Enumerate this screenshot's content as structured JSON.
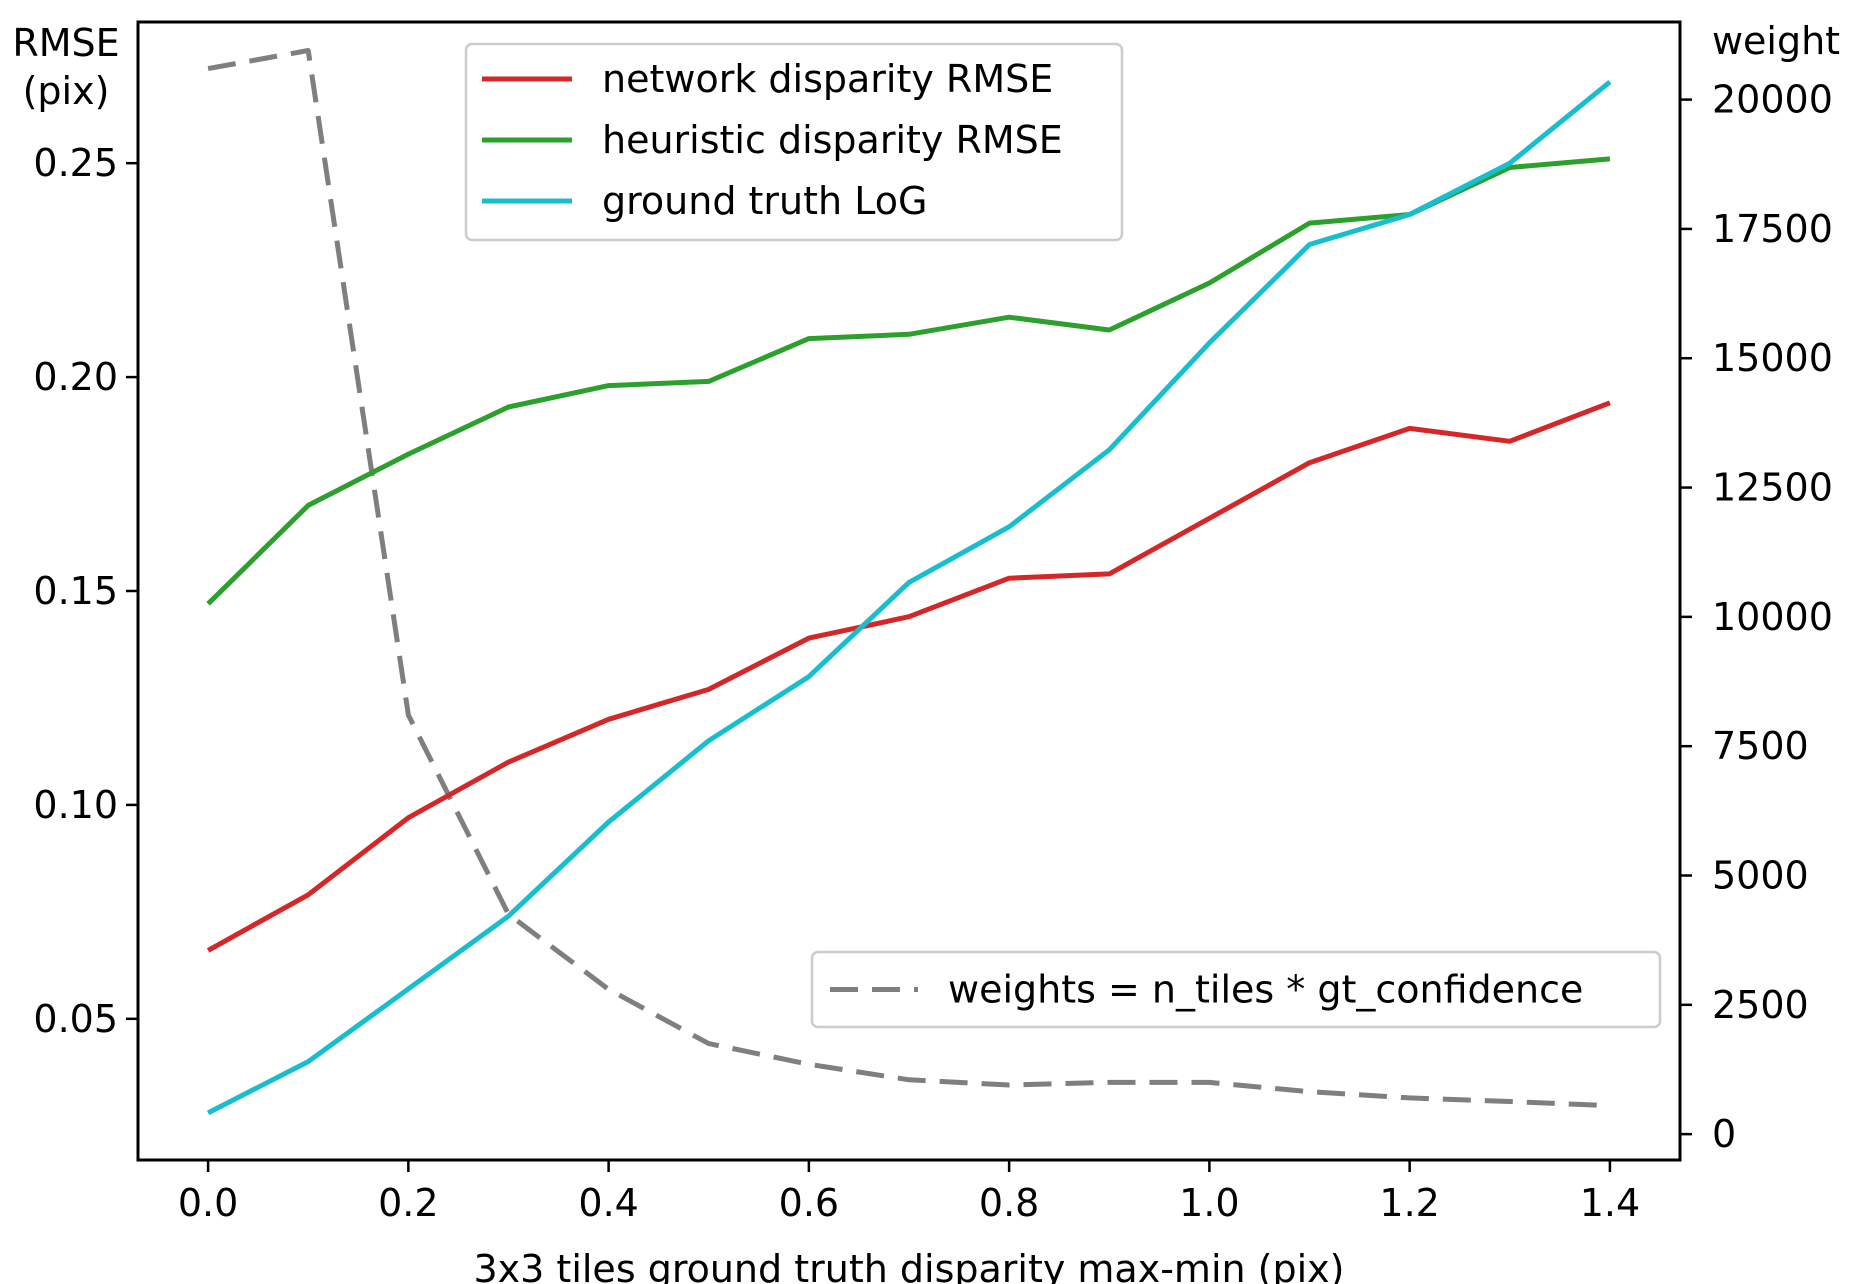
{
  "chart_data": {
    "type": "line",
    "x": [
      0.0,
      0.1,
      0.2,
      0.3,
      0.4,
      0.5,
      0.6,
      0.7,
      0.8,
      0.9,
      1.0,
      1.1,
      1.2,
      1.3,
      1.4
    ],
    "xlabel": "3x3 tiles ground truth disparity max-min (pix)",
    "xlim": [
      -0.07,
      1.47
    ],
    "xticks": [
      0.0,
      0.2,
      0.4,
      0.6,
      0.8,
      1.0,
      1.2,
      1.4
    ],
    "xtick_labels": [
      "0.0",
      "0.2",
      "0.4",
      "0.6",
      "0.8",
      "1.0",
      "1.2",
      "1.4"
    ],
    "left_axis": {
      "label_line1": "RMSE",
      "label_line2": "(pix)",
      "ylim": [
        0.017,
        0.283
      ],
      "ticks": [
        0.05,
        0.1,
        0.15,
        0.2,
        0.25
      ],
      "tick_labels": [
        "0.05",
        "0.10",
        "0.15",
        "0.20",
        "0.25"
      ]
    },
    "right_axis": {
      "label": "weight",
      "ylim": [
        -500,
        21500
      ],
      "ticks": [
        0,
        2500,
        5000,
        7500,
        10000,
        12500,
        15000,
        17500,
        20000
      ],
      "tick_labels": [
        "0",
        "2500",
        "5000",
        "7500",
        "10000",
        "12500",
        "15000",
        "17500",
        "20000"
      ]
    },
    "series": [
      {
        "name": "network disparity RMSE",
        "axis": "left",
        "color": "#d62728",
        "style": "solid",
        "values": [
          0.066,
          0.079,
          0.097,
          0.11,
          0.12,
          0.127,
          0.139,
          0.144,
          0.153,
          0.154,
          0.167,
          0.18,
          0.188,
          0.185,
          0.194
        ]
      },
      {
        "name": "heuristic disparity RMSE",
        "axis": "left",
        "color": "#2ca02c",
        "style": "solid",
        "values": [
          0.147,
          0.17,
          0.182,
          0.193,
          0.198,
          0.199,
          0.209,
          0.21,
          0.214,
          0.211,
          0.222,
          0.236,
          0.238,
          0.249,
          0.251
        ]
      },
      {
        "name": "ground truth LoG",
        "axis": "left",
        "color": "#17becf",
        "style": "solid",
        "values": [
          0.028,
          0.04,
          0.057,
          0.074,
          0.096,
          0.115,
          0.13,
          0.152,
          0.165,
          0.183,
          0.208,
          0.231,
          0.238,
          0.25,
          0.269
        ]
      },
      {
        "name": "weights = n_tiles * gt_confidence",
        "axis": "right",
        "color": "#7f7f7f",
        "style": "dashed",
        "values": [
          20600,
          20950,
          8100,
          4250,
          2800,
          1750,
          1350,
          1050,
          950,
          1000,
          1000,
          820,
          700,
          630,
          550
        ]
      }
    ],
    "legend_main_position": "upper-center",
    "legend_weights_position": "lower-right"
  }
}
